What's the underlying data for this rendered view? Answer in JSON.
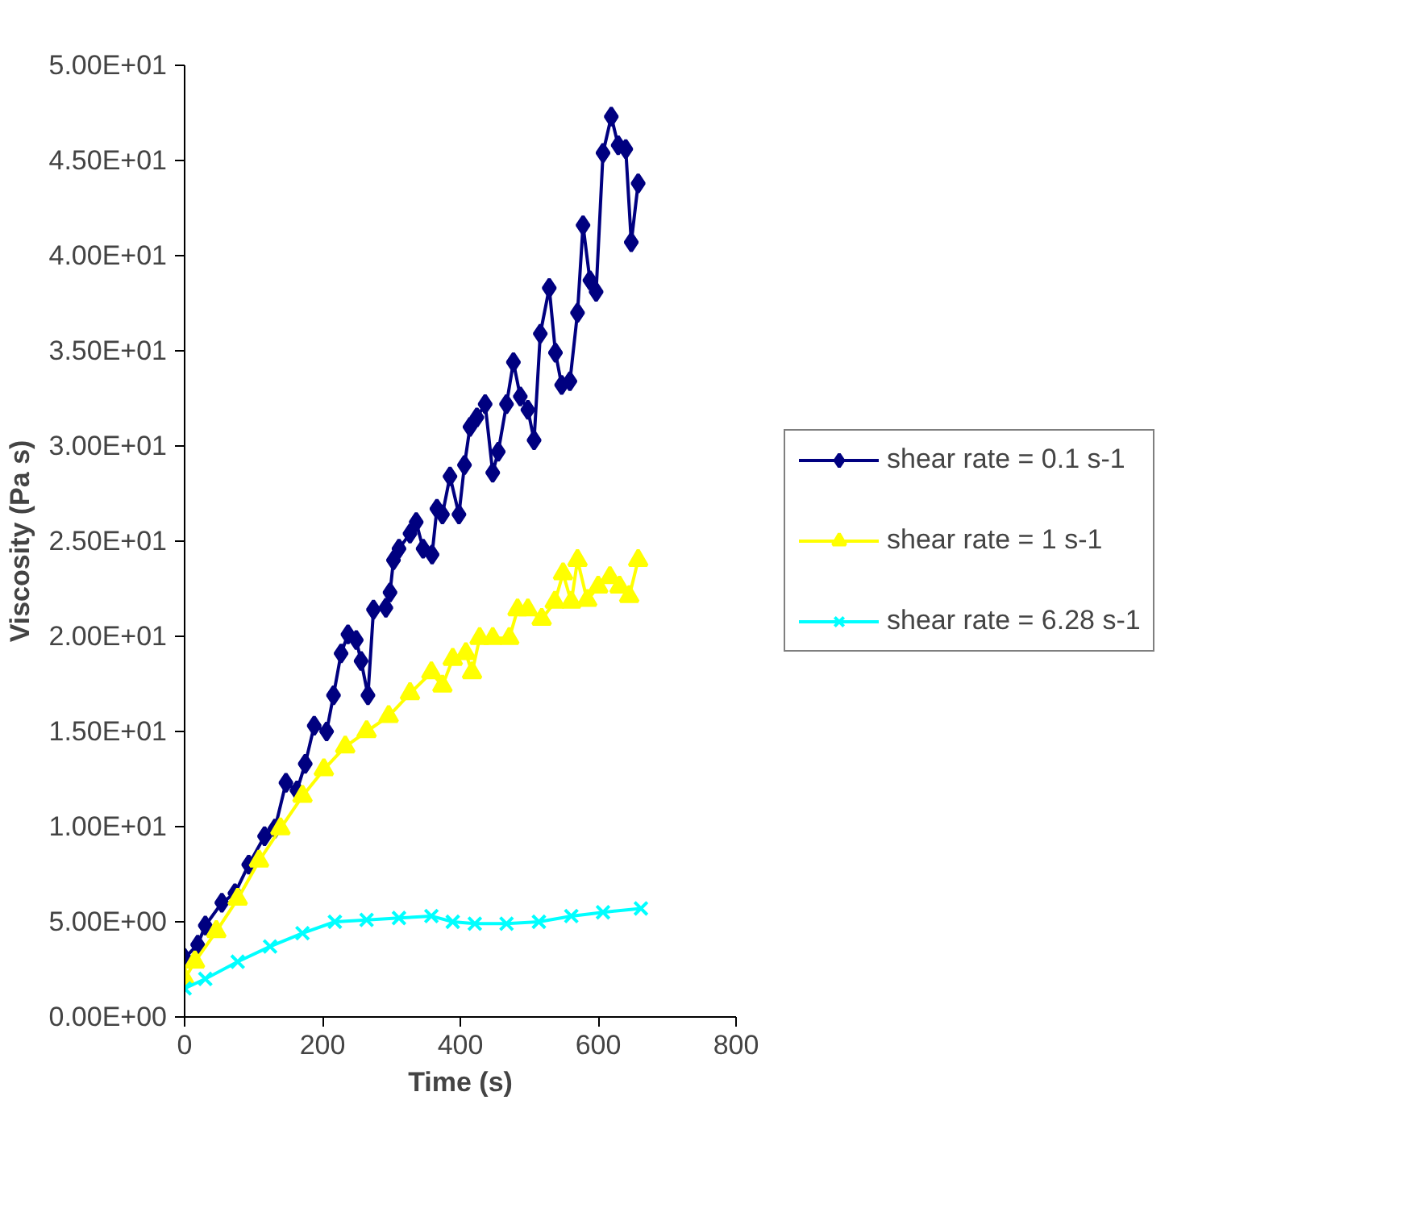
{
  "chart_data": {
    "type": "line",
    "xlabel": "Time (s)",
    "ylabel": "Viscosity (Pa s)",
    "xlim": [
      0,
      800
    ],
    "xticks": [
      0,
      200,
      400,
      600,
      800
    ],
    "ylim": [
      0,
      50
    ],
    "yticks": [
      {
        "value": 0,
        "label": "0.00E+00"
      },
      {
        "value": 5,
        "label": "5.00E+00"
      },
      {
        "value": 10,
        "label": "1.00E+01"
      },
      {
        "value": 15,
        "label": "1.50E+01"
      },
      {
        "value": 20,
        "label": "2.00E+01"
      },
      {
        "value": 25,
        "label": "2.50E+01"
      },
      {
        "value": 30,
        "label": "3.00E+01"
      },
      {
        "value": 35,
        "label": "3.50E+01"
      },
      {
        "value": 40,
        "label": "4.00E+01"
      },
      {
        "value": 45,
        "label": "4.50E+01"
      },
      {
        "value": 50,
        "label": "5.00E+01"
      }
    ],
    "grid": false,
    "legend": "right",
    "line_style": "solid",
    "series": [
      {
        "name": "shear rate = 0.1 s-1",
        "color": "#000080",
        "marker": "diamond",
        "x": [
          0,
          19,
          30,
          54,
          73,
          93,
          116,
          131,
          147,
          163,
          175,
          188,
          206,
          216,
          227,
          237,
          249,
          256,
          266,
          274,
          292,
          298,
          303,
          311,
          327,
          336,
          346,
          359,
          366,
          374,
          385,
          398,
          406,
          414,
          424,
          436,
          447,
          455,
          467,
          477,
          487,
          498,
          507,
          516,
          529,
          538,
          547,
          559,
          570,
          578,
          588,
          597,
          607,
          619,
          629,
          640,
          648,
          658
        ],
        "values": [
          3.1,
          3.8,
          4.8,
          6.0,
          6.5,
          8.0,
          9.5,
          9.9,
          12.3,
          11.9,
          13.3,
          15.3,
          15.0,
          16.9,
          19.1,
          20.1,
          19.8,
          18.7,
          16.9,
          21.4,
          21.5,
          22.3,
          24.0,
          24.6,
          25.4,
          26.0,
          24.6,
          24.3,
          26.7,
          26.4,
          28.4,
          26.4,
          29.0,
          31.0,
          31.5,
          32.2,
          28.6,
          29.7,
          32.2,
          34.4,
          32.6,
          31.9,
          30.3,
          35.9,
          38.3,
          34.9,
          33.2,
          33.4,
          37.0,
          41.6,
          38.7,
          38.1,
          45.4,
          47.3,
          45.8,
          45.6,
          40.7,
          43.8
        ]
      },
      {
        "name": "shear rate = 1 s-1",
        "color": "#ffff00",
        "marker": "triangle",
        "x": [
          0,
          15,
          46,
          77,
          108,
          139,
          171,
          202,
          233,
          264,
          296,
          327,
          358,
          374,
          389,
          408,
          417,
          428,
          447,
          471,
          483,
          498,
          518,
          537,
          549,
          561,
          570,
          584,
          600,
          617,
          631,
          645,
          658
        ],
        "values": [
          2.0,
          2.9,
          4.5,
          6.2,
          8.2,
          9.9,
          11.6,
          13.0,
          14.2,
          15.0,
          15.8,
          17.0,
          18.1,
          17.4,
          18.8,
          19.1,
          18.1,
          19.9,
          19.9,
          19.9,
          21.4,
          21.4,
          20.9,
          21.8,
          23.3,
          21.8,
          24.0,
          21.9,
          22.6,
          23.1,
          22.6,
          22.1,
          24.0
        ]
      },
      {
        "name": "shear rate = 6.28 s-1",
        "color": "#00ffff",
        "marker": "cross",
        "x": [
          0,
          30,
          77,
          124,
          171,
          218,
          264,
          311,
          358,
          389,
          421,
          467,
          514,
          561,
          607,
          662
        ],
        "values": [
          1.5,
          2.0,
          2.9,
          3.7,
          4.4,
          5.0,
          5.1,
          5.2,
          5.3,
          5.0,
          4.9,
          4.9,
          5.0,
          5.3,
          5.5,
          5.7
        ]
      }
    ]
  }
}
